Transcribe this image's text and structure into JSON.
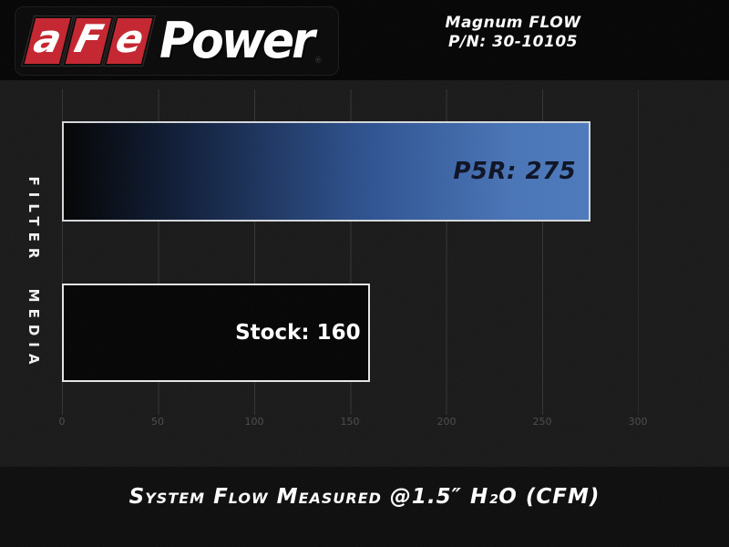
{
  "colors": {
    "brand_red": "#c5232e",
    "bar_blue": "#4b79bd",
    "bar_blue_dark": "#0d1b36",
    "bar_border_light": "#d4d7dc",
    "stock_bar_fill": "#020202",
    "header_background": "#020202",
    "chart_background": "#171717",
    "tick_text": "#4b4b4b",
    "p5r_label_text": "#0b1022"
  },
  "header": {
    "logo": {
      "letters": [
        "a",
        "F",
        "e"
      ],
      "word": "Power",
      "registered_mark": "®"
    },
    "product": {
      "line1": "Magnum FLOW",
      "line2": "P/N: 30-10105"
    }
  },
  "chart": {
    "y_axis_label": "FILTER MEDIA",
    "caption": "System Flow Measured @1.5″ H₂O (CFM)"
  },
  "chart_data": {
    "type": "bar",
    "orientation": "horizontal",
    "title": "",
    "categories": [
      "P5R",
      "Stock"
    ],
    "values": [
      275,
      160
    ],
    "bar_labels": [
      "P5R: 275",
      "Stock: 160"
    ],
    "xlabel": "System Flow Measured @1.5″ H₂O (CFM)",
    "ylabel": "FILTER MEDIA",
    "xlim": [
      0,
      300
    ],
    "xticks": [
      "0",
      "50",
      "100",
      "150",
      "200",
      "250",
      "300"
    ],
    "grid": true,
    "legend": false
  }
}
